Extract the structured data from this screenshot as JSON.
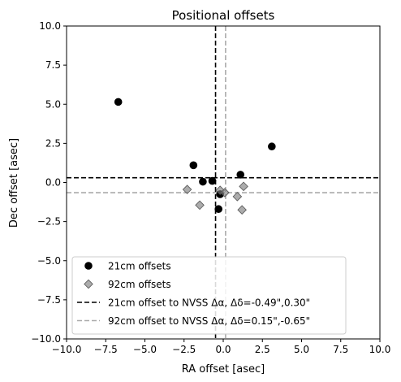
{
  "chart_data": {
    "type": "scatter",
    "title": "Positional offsets",
    "xlabel": "RA offset [asec]",
    "ylabel": "Dec offset [asec]",
    "xlim": [
      -10,
      10
    ],
    "ylim": [
      -10,
      10
    ],
    "xticks": [
      -10,
      -7.5,
      -5,
      -2.5,
      0,
      2.5,
      5,
      7.5,
      10
    ],
    "yticks": [
      -10,
      -7.5,
      -5,
      -2.5,
      0,
      2.5,
      5,
      7.5,
      10
    ],
    "xtick_labels": [
      "−10.0",
      "−7.5",
      "−5.0",
      "−2.5",
      "0.0",
      "2.5",
      "5.0",
      "7.5",
      "10.0"
    ],
    "ytick_labels": [
      "−10.0",
      "−7.5",
      "−5.0",
      "−2.5",
      "0.0",
      "2.5",
      "5.0",
      "7.5",
      "10.0"
    ],
    "grid": false,
    "legend_position": "bottom-left",
    "series": [
      {
        "name": "21cm offsets",
        "marker": "circle",
        "color": "#000000",
        "x": [
          -6.7,
          -1.9,
          -1.3,
          -0.7,
          -0.3,
          -0.2,
          1.1,
          3.1
        ],
        "y": [
          5.15,
          1.1,
          0.05,
          0.1,
          -1.7,
          -0.75,
          0.5,
          2.3
        ]
      },
      {
        "name": "92cm offsets",
        "marker": "diamond",
        "color": "#808080",
        "x": [
          -2.3,
          -1.5,
          -0.2,
          0.1,
          0.9,
          1.3,
          1.2
        ],
        "y": [
          -0.45,
          -1.45,
          -0.5,
          -0.65,
          -0.9,
          -0.25,
          -1.75
        ]
      }
    ],
    "reference_lines": [
      {
        "name": "21cm offset to NVSS Δα, Δδ=-0.49\",0.30\"",
        "color": "#000000",
        "x": -0.49,
        "y": 0.3
      },
      {
        "name": "92cm offset to NVSS Δα, Δδ=0.15\",-0.65\"",
        "color": "#aaaaaa",
        "x": 0.15,
        "y": -0.65
      }
    ]
  }
}
